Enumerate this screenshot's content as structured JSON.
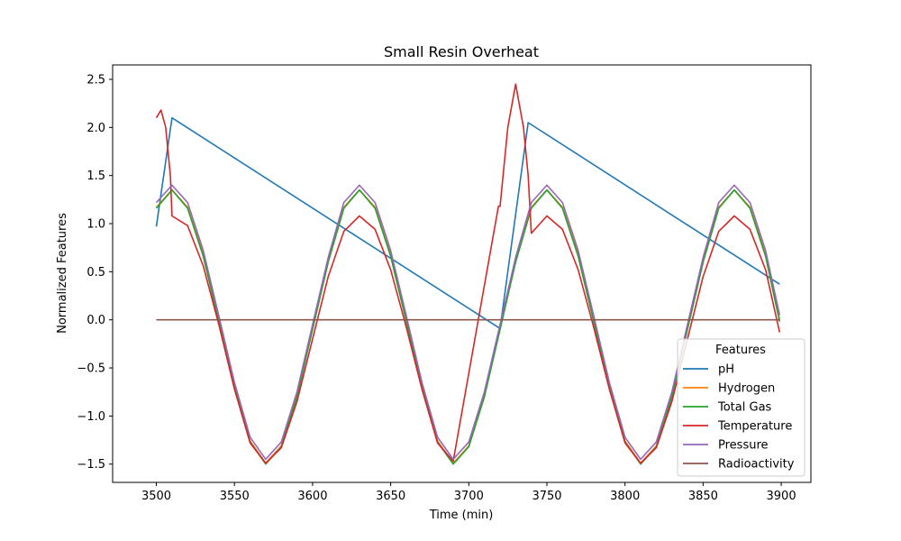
{
  "chart_data": {
    "type": "line",
    "title": "Small Resin Overheat",
    "xlabel": "Time (min)",
    "ylabel": "Normalized Features",
    "xlim": [
      3472,
      3919
    ],
    "ylim": [
      -1.69,
      2.65
    ],
    "xticks": [
      "3500",
      "3550",
      "3600",
      "3650",
      "3700",
      "3750",
      "3800",
      "3850",
      "3900"
    ],
    "xtick_values": [
      3500,
      3550,
      3600,
      3650,
      3700,
      3750,
      3800,
      3850,
      3900
    ],
    "yticks": [
      "−1.5",
      "−1.0",
      "−0.5",
      "0.0",
      "0.5",
      "1.0",
      "1.5",
      "2.0",
      "2.5"
    ],
    "ytick_values": [
      -1.5,
      -1.0,
      -0.5,
      0.0,
      0.5,
      1.0,
      1.5,
      2.0,
      2.5
    ],
    "grid": false,
    "legend": {
      "title": "Features",
      "placement": "lower-right"
    },
    "series": [
      {
        "name": "pH",
        "color": "#1f77b4",
        "x": [
          3500,
          3510,
          3720,
          3738,
          3899
        ],
        "y": [
          0.97,
          2.1,
          -0.09,
          2.05,
          0.37
        ]
      },
      {
        "name": "Hydrogen",
        "color": "#ff7f0e",
        "x": [
          3500,
          3510,
          3520,
          3530,
          3540,
          3550,
          3560,
          3570,
          3580,
          3590,
          3600,
          3610,
          3620,
          3630,
          3640,
          3650,
          3660,
          3670,
          3680,
          3690,
          3700,
          3710,
          3720,
          3730,
          3740,
          3750,
          3760,
          3770,
          3780,
          3790,
          3800,
          3810,
          3820,
          3830,
          3840,
          3850,
          3860,
          3870,
          3880,
          3890,
          3899
        ],
        "y": [
          1.17,
          1.35,
          1.17,
          0.68,
          0.0,
          -0.68,
          -1.26,
          -1.49,
          -1.31,
          -0.79,
          -0.08,
          0.62,
          1.17,
          1.35,
          1.17,
          0.68,
          0.0,
          -0.68,
          -1.26,
          -1.49,
          -1.31,
          -0.79,
          -0.08,
          0.62,
          1.17,
          1.35,
          1.17,
          0.68,
          0.0,
          -0.68,
          -1.26,
          -1.49,
          -1.31,
          -0.79,
          -0.08,
          0.62,
          1.17,
          1.35,
          1.17,
          0.68,
          0.0
        ]
      },
      {
        "name": "Total Gas",
        "color": "#2ca02c",
        "x": [
          3500,
          3510,
          3520,
          3530,
          3540,
          3550,
          3560,
          3570,
          3580,
          3590,
          3600,
          3610,
          3620,
          3630,
          3640,
          3650,
          3660,
          3670,
          3680,
          3690,
          3700,
          3710,
          3720,
          3730,
          3740,
          3750,
          3760,
          3770,
          3780,
          3790,
          3800,
          3810,
          3820,
          3830,
          3840,
          3850,
          3860,
          3870,
          3880,
          3890,
          3899
        ],
        "y": [
          1.16,
          1.35,
          1.16,
          0.66,
          -0.02,
          -0.7,
          -1.27,
          -1.5,
          -1.32,
          -0.8,
          -0.1,
          0.6,
          1.16,
          1.35,
          1.16,
          0.66,
          -0.02,
          -0.7,
          -1.27,
          -1.5,
          -1.32,
          -0.8,
          -0.1,
          0.6,
          1.16,
          1.35,
          1.16,
          0.66,
          -0.02,
          -0.7,
          -1.27,
          -1.5,
          -1.32,
          -0.8,
          -0.1,
          0.6,
          1.16,
          1.35,
          1.16,
          0.66,
          -0.02
        ]
      },
      {
        "name": "Temperature",
        "color": "#d62728",
        "x": [
          3500,
          3503,
          3506,
          3509,
          3510,
          3520,
          3530,
          3540,
          3550,
          3560,
          3570,
          3580,
          3590,
          3600,
          3610,
          3620,
          3630,
          3640,
          3650,
          3660,
          3670,
          3680,
          3690,
          3719,
          3720,
          3725,
          3730,
          3735,
          3738,
          3740,
          3750,
          3760,
          3770,
          3780,
          3790,
          3800,
          3810,
          3820,
          3830,
          3840,
          3850,
          3860,
          3870,
          3880,
          3890,
          3899
        ],
        "y": [
          2.1,
          2.18,
          2.0,
          1.5,
          1.08,
          0.98,
          0.56,
          -0.05,
          -0.72,
          -1.28,
          -1.49,
          -1.33,
          -0.85,
          -0.2,
          0.45,
          0.92,
          1.08,
          0.94,
          0.52,
          -0.08,
          -0.72,
          -1.28,
          -1.47,
          1.18,
          1.18,
          2.0,
          2.45,
          2.0,
          1.5,
          0.9,
          1.08,
          0.94,
          0.52,
          -0.08,
          -0.72,
          -1.28,
          -1.49,
          -1.33,
          -0.85,
          -0.2,
          0.45,
          0.92,
          1.08,
          0.94,
          0.52,
          -0.13
        ]
      },
      {
        "name": "Pressure",
        "color": "#9467bd",
        "x": [
          3500,
          3510,
          3520,
          3530,
          3540,
          3550,
          3560,
          3570,
          3580,
          3590,
          3600,
          3610,
          3620,
          3630,
          3640,
          3650,
          3660,
          3670,
          3680,
          3690,
          3700,
          3710,
          3720,
          3730,
          3740,
          3750,
          3760,
          3770,
          3780,
          3790,
          3800,
          3810,
          3820,
          3830,
          3840,
          3850,
          3860,
          3870,
          3880,
          3890,
          3899
        ],
        "y": [
          1.22,
          1.4,
          1.22,
          0.72,
          0.04,
          -0.65,
          -1.22,
          -1.45,
          -1.27,
          -0.75,
          -0.05,
          0.65,
          1.22,
          1.4,
          1.22,
          0.72,
          0.04,
          -0.65,
          -1.22,
          -1.45,
          -1.27,
          -0.75,
          -0.05,
          0.65,
          1.22,
          1.4,
          1.22,
          0.72,
          0.04,
          -0.65,
          -1.22,
          -1.45,
          -1.27,
          -0.75,
          -0.05,
          0.65,
          1.22,
          1.4,
          1.22,
          0.72,
          0.05
        ]
      },
      {
        "name": "Radioactivity",
        "color": "#8c564b",
        "x": [
          3500,
          3899
        ],
        "y": [
          0.0,
          0.0
        ]
      }
    ]
  }
}
